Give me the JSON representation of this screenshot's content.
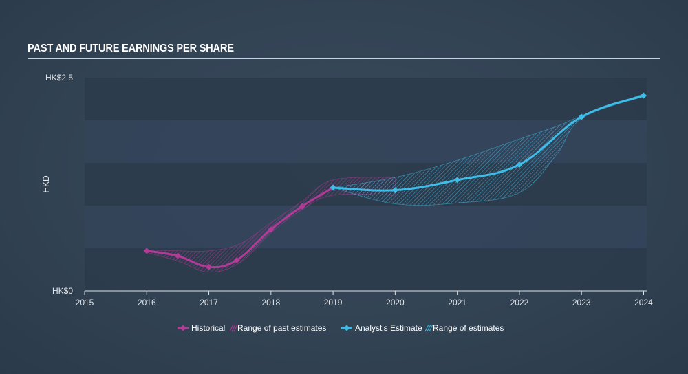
{
  "header": {
    "title": "PAST AND FUTURE EARNINGS PER SHARE"
  },
  "colors": {
    "historical": "#b13b97",
    "estimate": "#3fbde8",
    "band_dark": "#2c3b4b",
    "band_light": "#34445a"
  },
  "chart_data": {
    "type": "line",
    "title": "PAST AND FUTURE EARNINGS PER SHARE",
    "ylabel": "HKD",
    "xlim": [
      2015,
      2024.05
    ],
    "ylim": [
      0,
      2.5
    ],
    "y_tick_labels": [
      {
        "value": 2.5,
        "label": "HK$2.5"
      },
      {
        "value": 0,
        "label": "HK$0"
      }
    ],
    "x_ticks": [
      {
        "value": 2015,
        "label": "2015"
      },
      {
        "value": 2016,
        "label": "2016"
      },
      {
        "value": 2017,
        "label": "2017"
      },
      {
        "value": 2018,
        "label": "2018"
      },
      {
        "value": 2019,
        "label": "2019"
      },
      {
        "value": 2020,
        "label": "2020"
      },
      {
        "value": 2021,
        "label": "2021"
      },
      {
        "value": 2022,
        "label": "2022"
      },
      {
        "value": 2023,
        "label": "2023"
      },
      {
        "value": 2024,
        "label": "2024"
      }
    ],
    "series": [
      {
        "name": "Historical",
        "color": "#b13b97",
        "x": [
          2016.0,
          2016.5,
          2017.0,
          2017.45,
          2018.0,
          2018.5,
          2019.0
        ],
        "y": [
          0.47,
          0.41,
          0.28,
          0.36,
          0.72,
          0.99,
          1.21
        ]
      },
      {
        "name": "Analyst's Estimate",
        "color": "#3fbde8",
        "x": [
          2019.0,
          2020.0,
          2021.0,
          2022.0,
          2023.0,
          2024.0
        ],
        "y": [
          1.21,
          1.18,
          1.3,
          1.48,
          2.04,
          2.29
        ]
      }
    ],
    "ranges": [
      {
        "name": "Range of past estimates",
        "color": "#b13b97",
        "x": [
          2016.0,
          2016.5,
          2017.0,
          2017.5,
          2018.0,
          2018.5,
          2019.0,
          2020.0
        ],
        "low": [
          0.45,
          0.35,
          0.22,
          0.33,
          0.68,
          0.95,
          1.12,
          1.12
        ],
        "high": [
          0.48,
          0.47,
          0.47,
          0.55,
          0.8,
          1.05,
          1.3,
          1.33
        ]
      },
      {
        "name": "Range of estimates",
        "color": "#3fbde8",
        "x": [
          2019.0,
          2020.0,
          2021.0,
          2022.0,
          2022.6,
          2023.0,
          2024.0
        ],
        "low": [
          1.21,
          1.02,
          1.03,
          1.15,
          1.6,
          2.02,
          2.28
        ],
        "high": [
          1.21,
          1.33,
          1.53,
          1.78,
          1.93,
          2.05,
          2.31
        ]
      }
    ],
    "legend": {
      "placement": "bottom-center",
      "items": [
        {
          "label": "Historical",
          "kind": "line",
          "color": "#b13b97"
        },
        {
          "label": "Range of past estimates",
          "kind": "hatch",
          "color": "#b13b97"
        },
        {
          "label": "Analyst's Estimate",
          "kind": "line",
          "color": "#3fbde8"
        },
        {
          "label": "Range of estimates",
          "kind": "hatch",
          "color": "#3fbde8"
        }
      ]
    }
  }
}
